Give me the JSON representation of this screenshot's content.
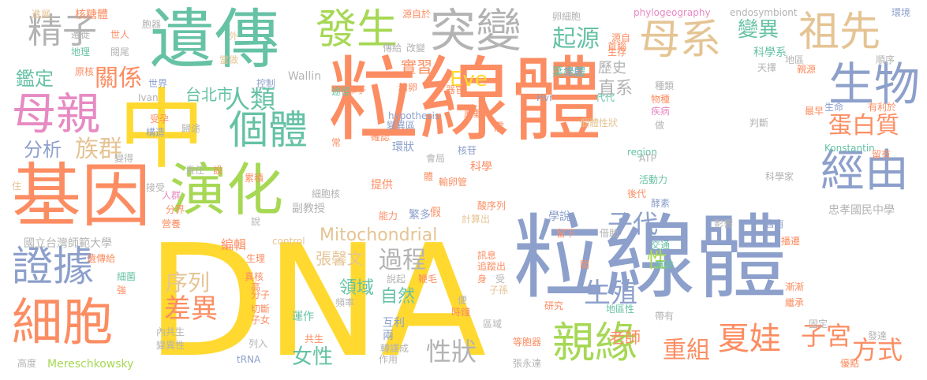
{
  "palette": {
    "orange": "#fc8d62",
    "blue": "#8da0cb",
    "green": "#a6d854",
    "yellow": "#ffd92f",
    "pink": "#e78ac3",
    "teal": "#66c2a5",
    "tan": "#e5c494",
    "gray": "#b3b3b3"
  },
  "words": [
    {
      "text": "粒線體",
      "color": "orange"
    },
    {
      "text": "粒線體",
      "color": "blue"
    },
    {
      "text": "DNA",
      "color": "yellow"
    },
    {
      "text": "遺傳",
      "color": "teal"
    },
    {
      "text": "基因",
      "color": "orange"
    },
    {
      "text": "中",
      "color": "yellow"
    },
    {
      "text": "演化",
      "color": "green"
    },
    {
      "text": "發生",
      "color": "green"
    },
    {
      "text": "突變",
      "color": "gray"
    },
    {
      "text": "母系",
      "color": "tan"
    },
    {
      "text": "祖先",
      "color": "tan"
    },
    {
      "text": "精子",
      "color": "gray"
    },
    {
      "text": "母親",
      "color": "pink"
    },
    {
      "text": "細胞",
      "color": "orange"
    },
    {
      "text": "證據",
      "color": "blue"
    },
    {
      "text": "生物",
      "color": "blue"
    },
    {
      "text": "經由",
      "color": "blue"
    },
    {
      "text": "個體",
      "color": "teal"
    },
    {
      "text": "人類",
      "color": "teal"
    },
    {
      "text": "起源",
      "color": "teal"
    },
    {
      "text": "變異",
      "color": "teal"
    },
    {
      "text": "親緣",
      "color": "green"
    },
    {
      "text": "夏娃",
      "color": "orange"
    },
    {
      "text": "重組",
      "color": "orange"
    },
    {
      "text": "子宮",
      "color": "orange"
    },
    {
      "text": "方式",
      "color": "orange"
    },
    {
      "text": "蛋白質",
      "color": "orange"
    },
    {
      "text": "Mitochondrial",
      "color": "tan"
    },
    {
      "text": "Eve",
      "color": "yellow"
    },
    {
      "text": "關係",
      "color": "orange"
    },
    {
      "text": "鑑定",
      "color": "teal"
    },
    {
      "text": "分析",
      "color": "blue"
    },
    {
      "text": "族群",
      "color": "tan"
    },
    {
      "text": "台北市",
      "color": "teal"
    },
    {
      "text": "過程",
      "color": "gray"
    },
    {
      "text": "子代",
      "color": "blue"
    },
    {
      "text": "生殖",
      "color": "blue"
    },
    {
      "text": "性",
      "color": "green"
    },
    {
      "text": "序列",
      "color": "tan"
    },
    {
      "text": "差異",
      "color": "orange"
    },
    {
      "text": "性狀",
      "color": "gray"
    },
    {
      "text": "女性",
      "color": "teal"
    },
    {
      "text": "直系",
      "color": "gray"
    },
    {
      "text": "實習",
      "color": "orange"
    },
    {
      "text": "歷史",
      "color": "gray"
    },
    {
      "text": "葉綠體",
      "color": "teal"
    },
    {
      "text": "自然",
      "color": "teal"
    },
    {
      "text": "領域",
      "color": "teal"
    },
    {
      "text": "張馨文",
      "color": "tan"
    },
    {
      "text": "老師",
      "color": "orange"
    },
    {
      "text": "忠孝國民中學",
      "color": "gray"
    },
    {
      "text": "國立台灣師範大學",
      "color": "gray"
    },
    {
      "text": "編輯",
      "color": "orange"
    },
    {
      "text": "副教授",
      "color": "gray"
    },
    {
      "text": "Mereschkowsky",
      "color": "green"
    },
    {
      "text": "Konstantin",
      "color": "teal"
    },
    {
      "text": "Wallin",
      "color": "gray"
    },
    {
      "text": "Ivan",
      "color": "gray"
    },
    {
      "text": "phylogeography",
      "color": "pink"
    },
    {
      "text": "endosymbiont",
      "color": "gray"
    },
    {
      "text": "hypothesis",
      "color": "blue"
    },
    {
      "text": "tRNA",
      "color": "blue"
    },
    {
      "text": "control",
      "color": "tan"
    },
    {
      "text": "region",
      "color": "teal"
    },
    {
      "text": "Hvr",
      "color": "blue"
    },
    {
      "text": "ATP",
      "color": "gray"
    },
    {
      "text": "進展",
      "color": "tan"
    },
    {
      "text": "核糖體",
      "color": "orange"
    },
    {
      "text": "胞器",
      "color": "gray"
    },
    {
      "text": "源自於",
      "color": "orange"
    },
    {
      "text": "卵細胞",
      "color": "gray"
    },
    {
      "text": "環境",
      "color": "blue"
    },
    {
      "text": "外",
      "color": "tan"
    },
    {
      "text": "遷徙",
      "color": "gray"
    },
    {
      "text": "世人",
      "color": "orange"
    },
    {
      "text": "地理",
      "color": "teal"
    },
    {
      "text": "閱尾",
      "color": "gray"
    },
    {
      "text": "原核",
      "color": "orange"
    },
    {
      "text": "傳給",
      "color": "gray"
    },
    {
      "text": "改變",
      "color": "gray"
    },
    {
      "text": "卵子",
      "color": "orange"
    },
    {
      "text": "科學系",
      "color": "teal"
    },
    {
      "text": "地區",
      "color": "gray"
    },
    {
      "text": "順序",
      "color": "gray"
    },
    {
      "text": "天擇",
      "color": "gray"
    },
    {
      "text": "親源",
      "color": "orange"
    },
    {
      "text": "控制",
      "color": "blue"
    },
    {
      "text": "精卵",
      "color": "orange"
    },
    {
      "text": "原動力",
      "color": "orange"
    },
    {
      "text": "代代",
      "color": "teal"
    },
    {
      "text": "種類",
      "color": "gray"
    },
    {
      "text": "物種",
      "color": "orange"
    },
    {
      "text": "疾病",
      "color": "pink"
    },
    {
      "text": "生命",
      "color": "blue"
    },
    {
      "text": "有利於",
      "color": "orange"
    },
    {
      "text": "最早",
      "color": "orange"
    },
    {
      "text": "受孕",
      "color": "orange"
    },
    {
      "text": "構造",
      "color": "blue"
    },
    {
      "text": "歸途",
      "color": "gray"
    },
    {
      "text": "變異區",
      "color": "blue"
    },
    {
      "text": "個體性狀",
      "color": "tan"
    },
    {
      "text": "判斷",
      "color": "gray"
    },
    {
      "text": "確認",
      "color": "orange"
    },
    {
      "text": "環狀",
      "color": "blue"
    },
    {
      "text": "核苷",
      "color": "blue"
    },
    {
      "text": "會局",
      "color": "gray"
    },
    {
      "text": "提供",
      "color": "orange"
    },
    {
      "text": "輸卵管",
      "color": "orange"
    },
    {
      "text": "科學",
      "color": "orange"
    },
    {
      "text": "活動力",
      "color": "teal"
    },
    {
      "text": "後代",
      "color": "orange"
    },
    {
      "text": "酵素",
      "color": "blue"
    },
    {
      "text": "科學家",
      "color": "gray"
    },
    {
      "text": "責任",
      "color": "gray"
    },
    {
      "text": "累積",
      "color": "orange"
    },
    {
      "text": "細胞核",
      "color": "gray"
    },
    {
      "text": "接受",
      "color": "gray"
    },
    {
      "text": "人群",
      "color": "pink"
    },
    {
      "text": "分界",
      "color": "orange"
    },
    {
      "text": "營養",
      "color": "orange"
    },
    {
      "text": "能力",
      "color": "orange"
    },
    {
      "text": "繁多",
      "color": "blue"
    },
    {
      "text": "假",
      "color": "orange"
    },
    {
      "text": "酸序列",
      "color": "orange"
    },
    {
      "text": "學說",
      "color": "blue"
    },
    {
      "text": "影響",
      "color": "gray"
    },
    {
      "text": "含有",
      "color": "blue"
    },
    {
      "text": "留下",
      "color": "orange"
    },
    {
      "text": "借助",
      "color": "gray"
    },
    {
      "text": "交通",
      "color": "teal"
    },
    {
      "text": "播遷",
      "color": "orange"
    },
    {
      "text": "生理",
      "color": "orange"
    },
    {
      "text": "訊息",
      "color": "orange"
    },
    {
      "text": "痕跡",
      "color": "teal"
    },
    {
      "text": "漸漸",
      "color": "orange"
    },
    {
      "text": "繼承",
      "color": "orange"
    },
    {
      "text": "細菌",
      "color": "teal"
    },
    {
      "text": "分子",
      "color": "orange"
    },
    {
      "text": "切斷",
      "color": "orange"
    },
    {
      "text": "頻率",
      "color": "gray"
    },
    {
      "text": "子孫",
      "color": "tan"
    },
    {
      "text": "研究",
      "color": "orange"
    },
    {
      "text": "地區性",
      "color": "teal"
    },
    {
      "text": "運作",
      "color": "teal"
    },
    {
      "text": "互利",
      "color": "blue"
    },
    {
      "text": "兩",
      "color": "blue"
    },
    {
      "text": "時鐘",
      "color": "orange"
    },
    {
      "text": "區域",
      "color": "gray"
    },
    {
      "text": "帶有",
      "color": "gray"
    },
    {
      "text": "固定",
      "color": "gray"
    },
    {
      "text": "內共生",
      "color": "gray"
    },
    {
      "text": "變異性",
      "color": "gray"
    },
    {
      "text": "共生",
      "color": "orange"
    },
    {
      "text": "轉譯成",
      "color": "gray"
    },
    {
      "text": "等胞器",
      "color": "orange"
    },
    {
      "text": "發達",
      "color": "gray"
    },
    {
      "text": "優點",
      "color": "orange"
    },
    {
      "text": "高度",
      "color": "gray"
    },
    {
      "text": "列入",
      "color": "gray"
    },
    {
      "text": "作用",
      "color": "gray"
    },
    {
      "text": "張永達",
      "color": "gray"
    },
    {
      "text": "遺傳給",
      "color": "orange"
    },
    {
      "text": "真核",
      "color": "orange"
    },
    {
      "text": "說起",
      "color": "gray"
    },
    {
      "text": "鞭毛",
      "color": "orange"
    },
    {
      "text": "途徑",
      "color": "teal"
    },
    {
      "text": "器官",
      "color": "orange"
    },
    {
      "text": "需",
      "color": "orange"
    },
    {
      "text": "常",
      "color": "orange"
    },
    {
      "text": "計算出",
      "color": "tan"
    },
    {
      "text": "追蹤出",
      "color": "orange"
    },
    {
      "text": "身",
      "color": "orange"
    },
    {
      "text": "受",
      "color": "gray"
    },
    {
      "text": "便",
      "color": "gray"
    },
    {
      "text": "間",
      "color": "orange"
    },
    {
      "text": "定居",
      "color": "blue"
    },
    {
      "text": "源自",
      "color": "orange"
    },
    {
      "text": "生存",
      "color": "orange"
    },
    {
      "text": "首腦",
      "color": "orange"
    },
    {
      "text": "當做",
      "color": "tan"
    },
    {
      "text": "世界",
      "color": "blue"
    },
    {
      "text": "變得",
      "color": "gray"
    },
    {
      "text": "設",
      "color": "orange"
    },
    {
      "text": "說",
      "color": "gray"
    },
    {
      "text": "高",
      "color": "orange"
    },
    {
      "text": "強",
      "color": "orange"
    },
    {
      "text": "子女",
      "color": "orange"
    },
    {
      "text": "住",
      "color": "tan"
    },
    {
      "text": "做",
      "color": "gray"
    },
    {
      "text": "留有",
      "color": "orange"
    },
    {
      "text": "體",
      "color": "orange"
    }
  ]
}
